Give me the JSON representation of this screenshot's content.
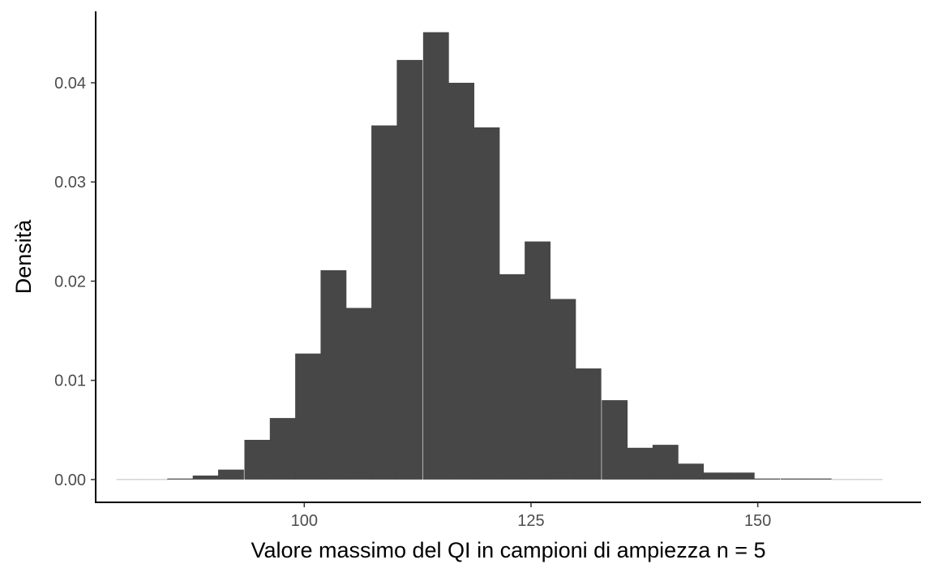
{
  "chart_data": {
    "type": "bar",
    "subtype": "histogram",
    "xlabel": "Valore massimo del QI in campioni di ampiezza n = 5",
    "ylabel": "Densità",
    "xlim": [
      77,
      168
    ],
    "ylim": [
      -0.0023,
      0.0472
    ],
    "x_ticks": [
      100,
      125,
      150
    ],
    "y_ticks": [
      0.0,
      0.01,
      0.02,
      0.03,
      0.04
    ],
    "x_tick_labels": [
      "100",
      "125",
      "150"
    ],
    "y_tick_labels": [
      "0.00",
      "0.01",
      "0.02",
      "0.03",
      "0.04"
    ],
    "bin_width": 2.82,
    "bins": [
      {
        "x0": 79.3,
        "density": 0.0
      },
      {
        "x0": 82.1,
        "density": 0.0
      },
      {
        "x0": 84.9,
        "density": 0.0001
      },
      {
        "x0": 87.7,
        "density": 0.0004
      },
      {
        "x0": 90.5,
        "density": 0.001
      },
      {
        "x0": 93.4,
        "density": 0.004
      },
      {
        "x0": 96.2,
        "density": 0.0062
      },
      {
        "x0": 99.0,
        "density": 0.0127
      },
      {
        "x0": 101.8,
        "density": 0.0211
      },
      {
        "x0": 104.6,
        "density": 0.0173
      },
      {
        "x0": 107.4,
        "density": 0.0357
      },
      {
        "x0": 110.2,
        "density": 0.0423
      },
      {
        "x0": 113.1,
        "density": 0.0451
      },
      {
        "x0": 115.9,
        "density": 0.04
      },
      {
        "x0": 118.7,
        "density": 0.0355
      },
      {
        "x0": 121.5,
        "density": 0.0207
      },
      {
        "x0": 124.3,
        "density": 0.024
      },
      {
        "x0": 127.1,
        "density": 0.0182
      },
      {
        "x0": 129.9,
        "density": 0.0112
      },
      {
        "x0": 132.8,
        "density": 0.008
      },
      {
        "x0": 135.6,
        "density": 0.0032
      },
      {
        "x0": 138.4,
        "density": 0.0035
      },
      {
        "x0": 141.2,
        "density": 0.0016
      },
      {
        "x0": 144.0,
        "density": 0.0007
      },
      {
        "x0": 146.8,
        "density": 0.0007
      },
      {
        "x0": 149.6,
        "density": 0.0001
      },
      {
        "x0": 152.5,
        "density": 0.0001
      },
      {
        "x0": 155.3,
        "density": 0.0001
      },
      {
        "x0": 158.1,
        "density": 0.0
      },
      {
        "x0": 160.9,
        "density": 0.0
      }
    ],
    "bar_color": "#474747",
    "empty_bin_color": "#bdbdbd",
    "axis_color": "#000000",
    "grid": false,
    "legend": "none"
  }
}
